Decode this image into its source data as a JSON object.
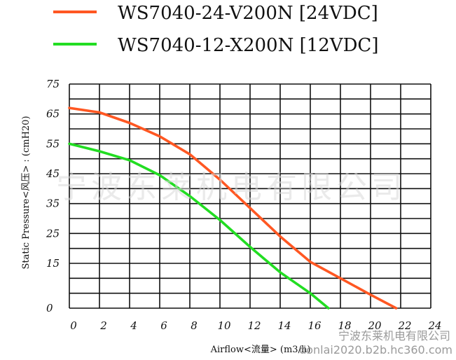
{
  "chart_data": {
    "type": "line",
    "title": "",
    "xlabel": "Airflow<流量> (m3/h)",
    "ylabel": "Static Pressure<风压> : (cmH20)",
    "xlim": [
      0,
      24
    ],
    "ylim": [
      0,
      75
    ],
    "x_ticks": [
      "0",
      "2",
      "4",
      "6",
      "8",
      "10",
      "12",
      "14",
      "16",
      "18",
      "20",
      "22",
      "24"
    ],
    "y_ticks": [
      "0",
      "15",
      "25",
      "35",
      "45",
      "55",
      "65",
      "75"
    ],
    "grid": true,
    "legend_position": "top",
    "series": [
      {
        "name": "WS7040-24-V200N [24VDC]",
        "color": "#ff5722",
        "x": [
          0,
          2,
          4,
          6,
          8,
          10,
          12,
          14,
          16,
          18,
          20,
          21.7
        ],
        "y": [
          67,
          65.5,
          62,
          57.5,
          51.5,
          43,
          33.5,
          24,
          15.5,
          10,
          4.5,
          0
        ]
      },
      {
        "name": "WS7040-12-X200N [12VDC]",
        "color": "#22dd22",
        "x": [
          0,
          2,
          4,
          6,
          8,
          10,
          12,
          14,
          16,
          17.2
        ],
        "y": [
          55,
          52.5,
          49.5,
          44.5,
          37.5,
          29.5,
          20.5,
          12,
          5,
          0
        ]
      }
    ]
  },
  "watermark": {
    "main": "宁波东莱机电有限公司",
    "corner_line1": "宁波东莱机电有限公司",
    "corner_line2": "donlai2020.b2b.hc360.com"
  }
}
